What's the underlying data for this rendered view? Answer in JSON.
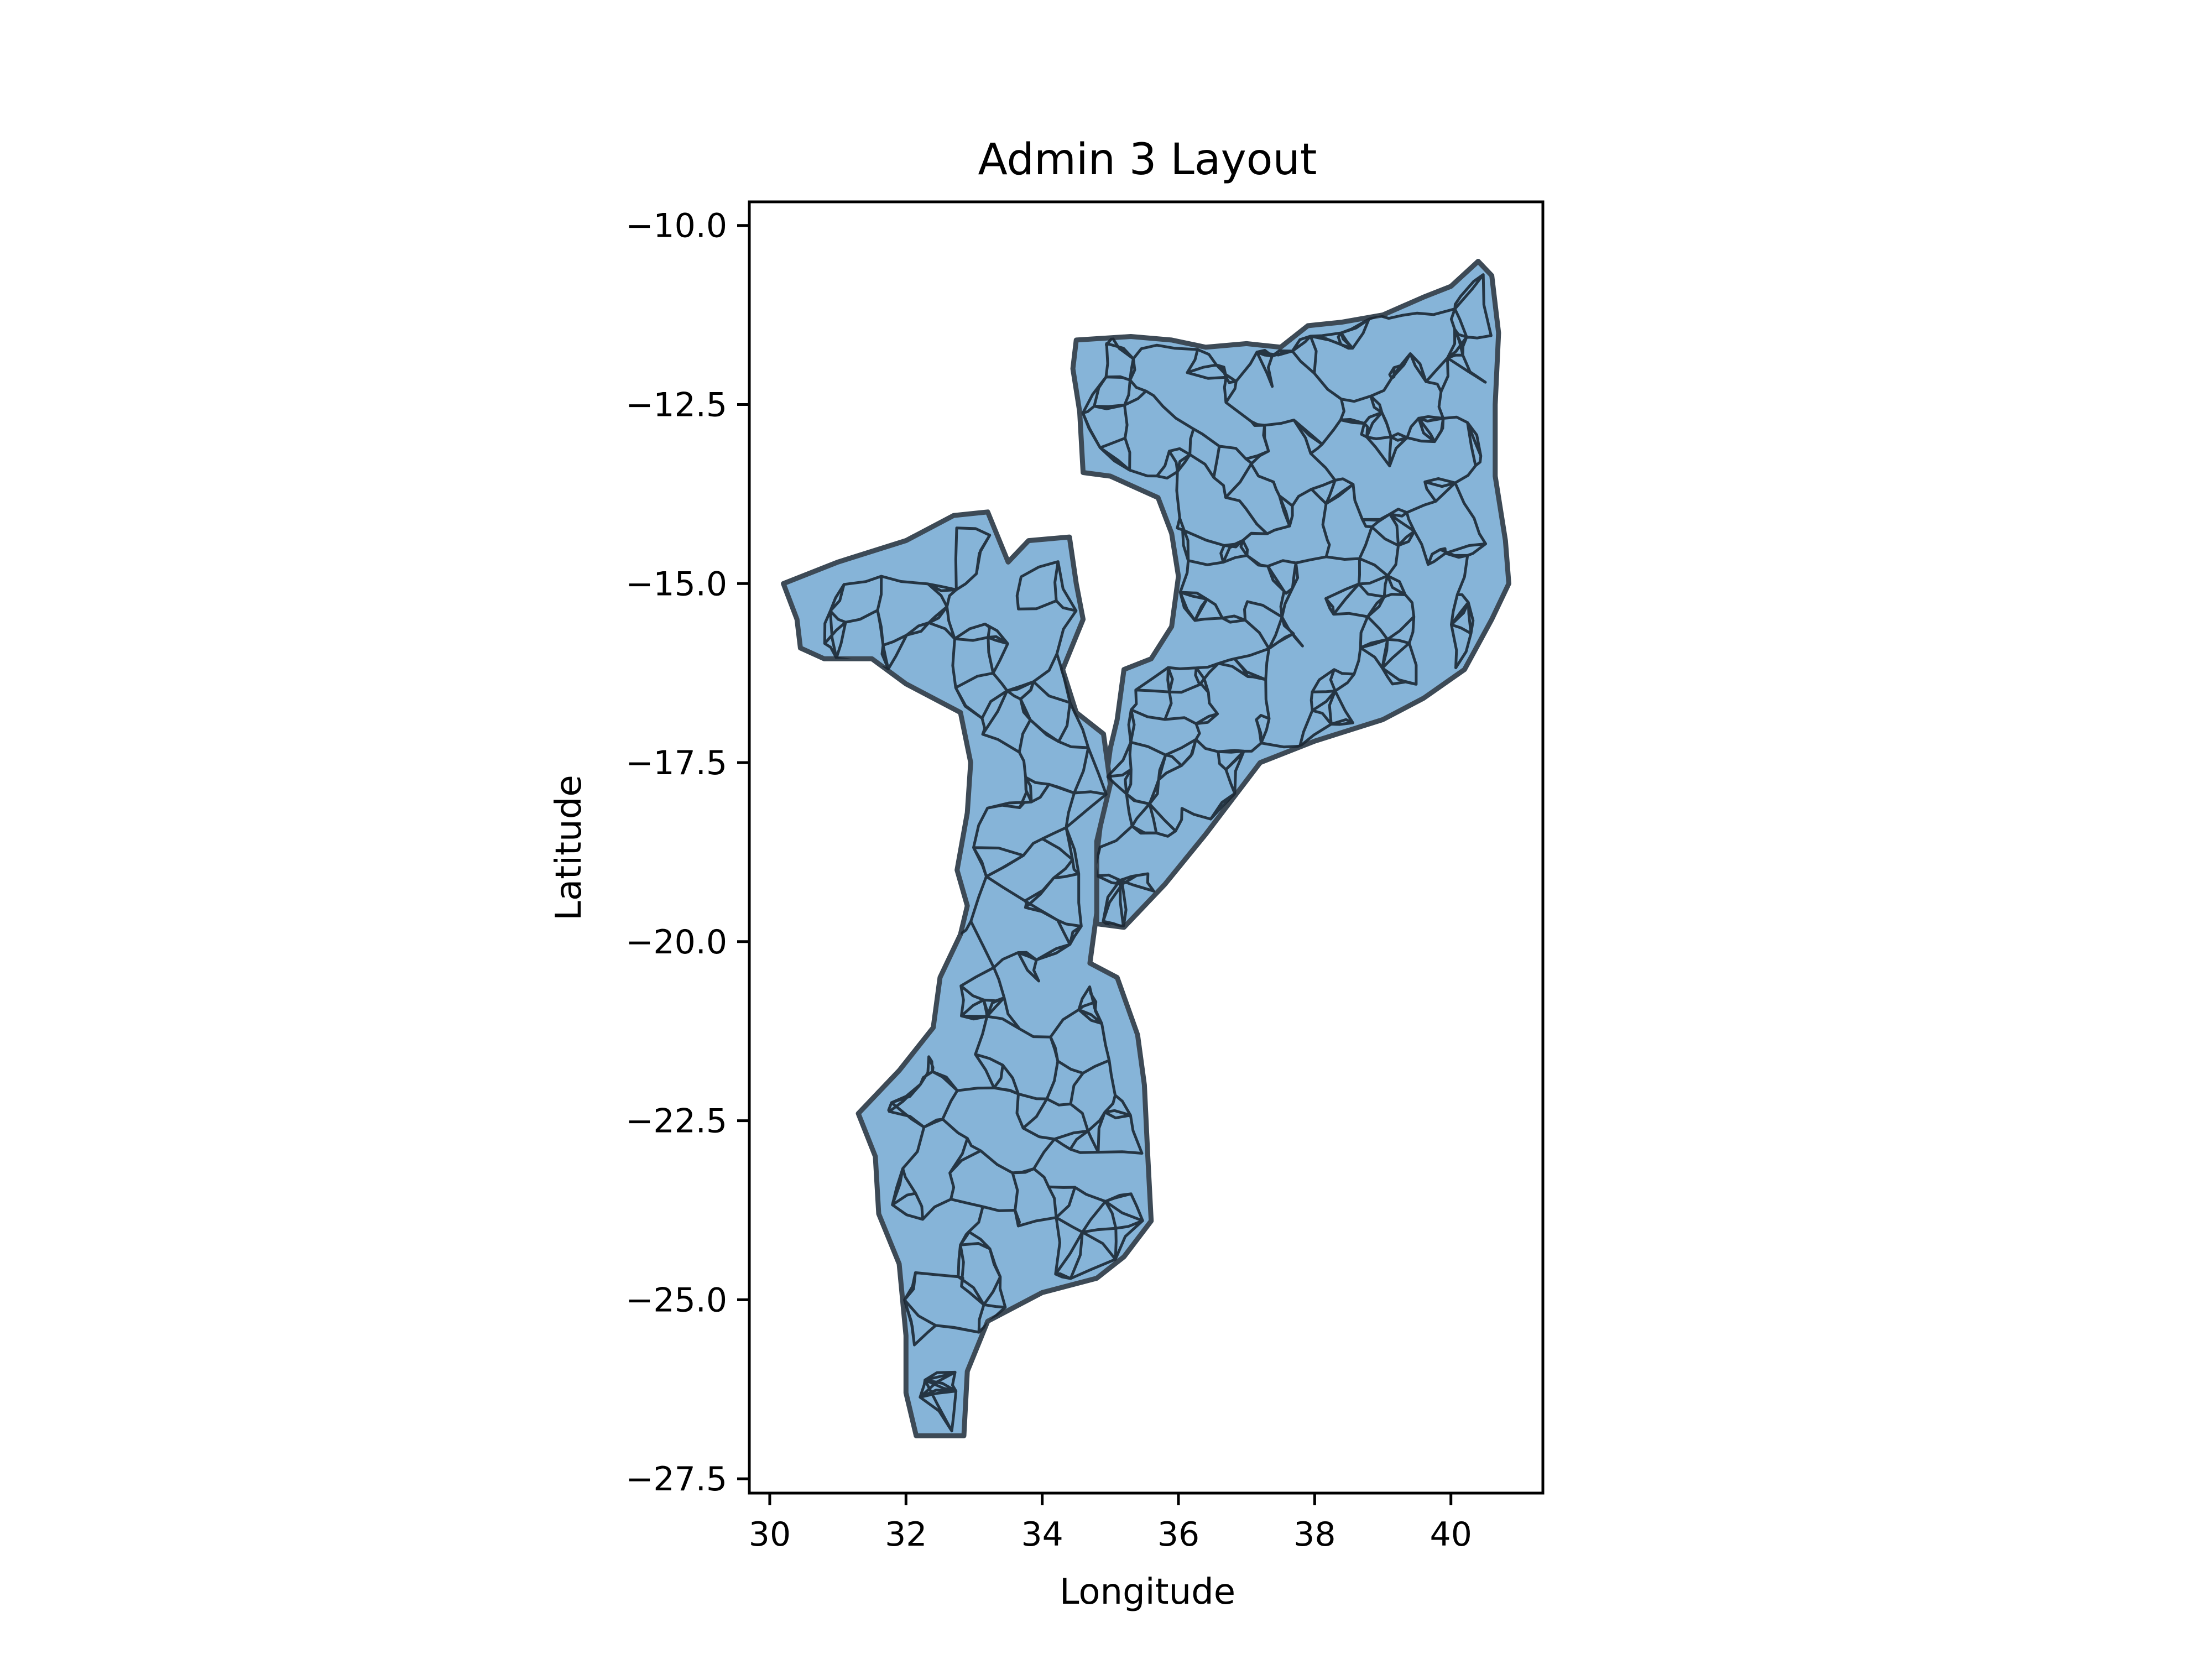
{
  "chart_data": {
    "type": "map",
    "title": "Admin 3 Layout",
    "xlabel": "Longitude",
    "ylabel": "Latitude",
    "xlim": [
      29.7,
      41.35
    ],
    "ylim": [
      -27.7,
      -9.67
    ],
    "xticks": [
      30,
      32,
      34,
      36,
      38,
      40
    ],
    "yticks": [
      -10.0,
      -12.5,
      -15.0,
      -17.5,
      -20.0,
      -22.5,
      -25.0,
      -27.5
    ],
    "grid": false,
    "colors": {
      "fill": "#86b4d8",
      "edge": "#1b2733"
    },
    "regions": {
      "north": [
        [
          34.5,
          -11.6
        ],
        [
          35.3,
          -11.55
        ],
        [
          35.9,
          -11.6
        ],
        [
          36.4,
          -11.7
        ],
        [
          37.0,
          -11.65
        ],
        [
          37.5,
          -11.7
        ],
        [
          37.9,
          -11.4
        ],
        [
          38.4,
          -11.35
        ],
        [
          39.0,
          -11.25
        ],
        [
          39.6,
          -11.0
        ],
        [
          40.0,
          -10.85
        ],
        [
          40.4,
          -10.5
        ],
        [
          40.6,
          -10.7
        ],
        [
          40.7,
          -11.5
        ],
        [
          40.65,
          -12.5
        ],
        [
          40.65,
          -13.5
        ],
        [
          40.8,
          -14.4
        ],
        [
          40.85,
          -15.0
        ],
        [
          40.6,
          -15.5
        ],
        [
          40.2,
          -16.2
        ],
        [
          39.6,
          -16.6
        ],
        [
          39.0,
          -16.9
        ],
        [
          38.0,
          -17.2
        ],
        [
          37.2,
          -17.5
        ],
        [
          36.8,
          -18.0
        ],
        [
          36.4,
          -18.5
        ],
        [
          35.8,
          -19.2
        ],
        [
          35.2,
          -19.8
        ],
        [
          34.8,
          -19.75
        ],
        [
          34.8,
          -18.8
        ],
        [
          34.9,
          -18.0
        ],
        [
          35.0,
          -17.3
        ],
        [
          35.1,
          -16.9
        ],
        [
          35.2,
          -16.2
        ],
        [
          35.6,
          -16.05
        ],
        [
          35.9,
          -15.6
        ],
        [
          36.0,
          -14.9
        ],
        [
          35.9,
          -14.3
        ],
        [
          35.7,
          -13.8
        ],
        [
          35.0,
          -13.5
        ],
        [
          34.6,
          -13.45
        ],
        [
          34.55,
          -12.6
        ],
        [
          34.45,
          -12.0
        ]
      ],
      "west": [
        [
          30.2,
          -15.0
        ],
        [
          31.0,
          -14.7
        ],
        [
          32.0,
          -14.4
        ],
        [
          32.7,
          -14.05
        ],
        [
          33.2,
          -14.0
        ],
        [
          33.5,
          -14.7
        ],
        [
          33.8,
          -14.4
        ],
        [
          34.4,
          -14.35
        ],
        [
          34.5,
          -15.0
        ],
        [
          34.6,
          -15.5
        ],
        [
          34.3,
          -16.2
        ],
        [
          34.5,
          -16.8
        ],
        [
          34.9,
          -17.1
        ],
        [
          35.0,
          -17.8
        ],
        [
          34.8,
          -18.6
        ],
        [
          34.8,
          -19.6
        ],
        [
          34.7,
          -20.3
        ],
        [
          35.1,
          -20.5
        ],
        [
          35.4,
          -21.3
        ],
        [
          35.5,
          -22.0
        ],
        [
          35.55,
          -23.0
        ],
        [
          35.6,
          -23.9
        ],
        [
          35.2,
          -24.4
        ],
        [
          34.8,
          -24.7
        ],
        [
          34.0,
          -24.9
        ],
        [
          33.2,
          -25.3
        ],
        [
          32.9,
          -26.0
        ],
        [
          32.85,
          -26.9
        ],
        [
          32.15,
          -26.9
        ],
        [
          32.0,
          -26.3
        ],
        [
          32.0,
          -25.5
        ],
        [
          31.9,
          -24.5
        ],
        [
          31.6,
          -23.8
        ],
        [
          31.55,
          -23.0
        ],
        [
          31.3,
          -22.4
        ],
        [
          31.9,
          -21.8
        ],
        [
          32.4,
          -21.2
        ],
        [
          32.5,
          -20.5
        ],
        [
          32.8,
          -19.9
        ],
        [
          32.9,
          -19.5
        ],
        [
          32.75,
          -19.0
        ],
        [
          32.9,
          -18.2
        ],
        [
          32.95,
          -17.5
        ],
        [
          32.8,
          -16.8
        ],
        [
          32.0,
          -16.4
        ],
        [
          31.5,
          -16.05
        ],
        [
          30.8,
          -16.05
        ],
        [
          30.45,
          -15.9
        ],
        [
          30.4,
          -15.5
        ]
      ]
    }
  }
}
